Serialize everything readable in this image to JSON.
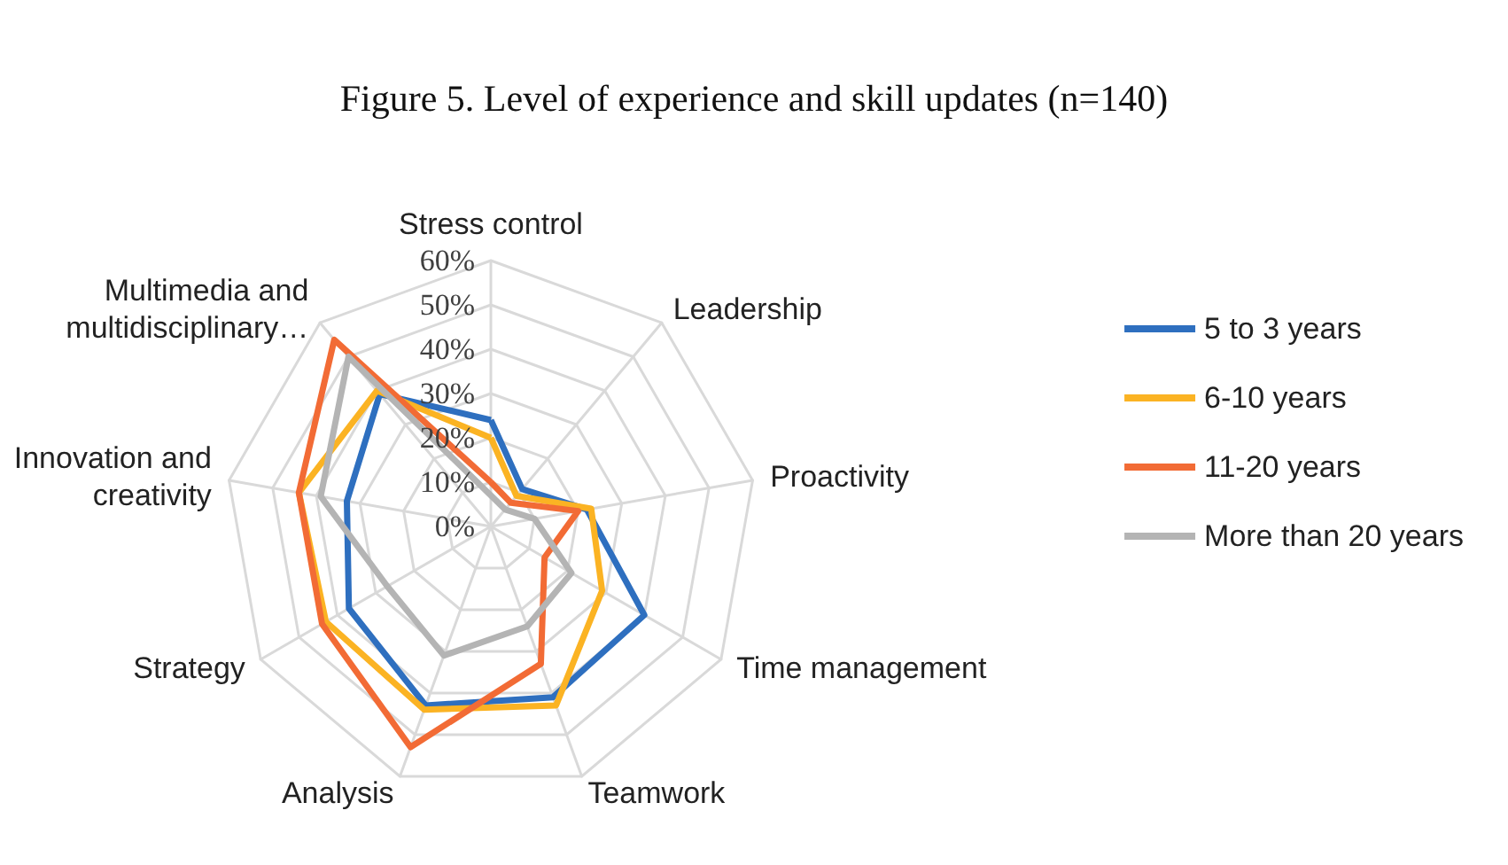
{
  "chart_data": {
    "type": "radar",
    "title": "Figure 5. Level of experience and skill updates (n=140)",
    "categories": [
      "Stress control",
      "Leadership",
      "Proactivity",
      "Time management",
      "Teamwork",
      "Analysis",
      "Strategy",
      "Innovation and creativity",
      "Multimedia and multidisciplinary…"
    ],
    "series": [
      {
        "name": "5 to 3 years",
        "color": "#2e6fbf",
        "values": [
          24,
          11,
          22,
          40,
          41,
          43,
          37,
          33,
          39
        ]
      },
      {
        "name": "6-10 years",
        "color": "#fbb323",
        "values": [
          20,
          9,
          23,
          29,
          43,
          44,
          43,
          44,
          40
        ]
      },
      {
        "name": "11-20 years",
        "color": "#f26b35",
        "values": [
          10,
          7,
          20,
          14,
          33,
          53,
          44,
          44,
          55
        ]
      },
      {
        "name": "More than 20 years",
        "color": "#b4b4b4",
        "values": [
          7,
          5,
          10,
          21,
          24,
          31,
          27,
          39,
          50
        ]
      }
    ],
    "ylim": [
      0,
      60
    ],
    "yticks": [
      {
        "value": 0,
        "label": "0%"
      },
      {
        "value": 10,
        "label": "10%"
      },
      {
        "value": 20,
        "label": "20%"
      },
      {
        "value": 30,
        "label": "30%"
      },
      {
        "value": 40,
        "label": "40%"
      },
      {
        "value": 50,
        "label": "50%"
      },
      {
        "value": 60,
        "label": "60%"
      }
    ],
    "legend": "right",
    "grid": true
  }
}
